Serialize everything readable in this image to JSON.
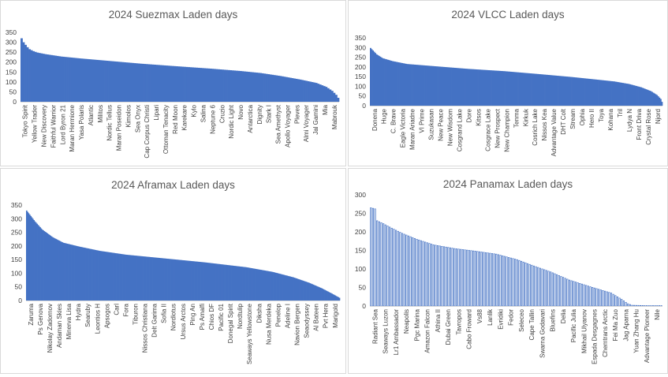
{
  "colors": {
    "bar": "#4472c4",
    "axis": "#d9d9d9",
    "text": "#404040",
    "title": "#595959"
  },
  "chart_data": [
    {
      "type": "bar",
      "title": "2024 Suezmax Laden days",
      "ylim": [
        0,
        350
      ],
      "yticks": [
        0,
        50,
        100,
        150,
        200,
        250,
        300,
        350
      ],
      "bar_count": 160,
      "style": "filled",
      "tick_labels": [
        "Tokyo Spirit",
        "Yellow Trader",
        "New Discovery",
        "Faithful Warrior",
        "Lord Byron 21",
        "Maran Hermione",
        "Yasa Polaris",
        "Atlantic",
        "Militos",
        "Nordic Tellus",
        "Maran Poseidon",
        "Kimolos",
        "Sea Onyx",
        "Cap Corpus Christi",
        "Lipari",
        "Ottoman Tenacity",
        "Red Moon",
        "Karekare",
        "Kylo",
        "Salina",
        "Neptune 6",
        "Cruzio",
        "Nordic Light",
        "Novo",
        "Antarctica",
        "Dignity",
        "Stark I",
        "Sea Amethyst",
        "Apollo Voyager",
        "Pleves",
        "Almi Voyager",
        "Jal Gamini",
        "Mia",
        "Mabrouk"
      ],
      "profile": [
        [
          0,
          320
        ],
        [
          1,
          300
        ],
        [
          2,
          287
        ],
        [
          3,
          275
        ],
        [
          4,
          265
        ],
        [
          6,
          255
        ],
        [
          8,
          248
        ],
        [
          12,
          240
        ],
        [
          20,
          228
        ],
        [
          30,
          218
        ],
        [
          45,
          205
        ],
        [
          60,
          192
        ],
        [
          75,
          181
        ],
        [
          95,
          167
        ],
        [
          110,
          155
        ],
        [
          120,
          145
        ],
        [
          130,
          130
        ],
        [
          140,
          112
        ],
        [
          148,
          95
        ],
        [
          153,
          75
        ],
        [
          156,
          55
        ],
        [
          158,
          35
        ],
        [
          159,
          20
        ]
      ]
    },
    {
      "type": "bar",
      "title": "2024 VLCC Laden days",
      "ylim": [
        0,
        350
      ],
      "yticks": [
        0,
        50,
        100,
        150,
        200,
        250,
        300,
        350
      ],
      "bar_count": 240,
      "style": "filled",
      "tick_labels": [
        "Donena",
        "Huge",
        "C. Brave",
        "Eagle Victoria",
        "Maran Ariadne",
        "VI Prime",
        "Suzukasan",
        "New Peace",
        "New Wisdom",
        "Cosgrand Lake",
        "Dore",
        "Kitsos",
        "Cosgrace Lake",
        "New Prospect",
        "New Champion",
        "Tenma",
        "Kirkuk",
        "Cosrich Lake",
        "Nissos Kea",
        "Advantage Value",
        "DHT Colt",
        "Stream",
        "Ophia",
        "Hero II",
        "Toya",
        "Kohana",
        "Tril",
        "Lydya N",
        "Front Driva",
        "Crystal Rose",
        "Njord"
      ],
      "profile": [
        [
          0,
          298
        ],
        [
          2,
          285
        ],
        [
          5,
          265
        ],
        [
          10,
          245
        ],
        [
          18,
          230
        ],
        [
          30,
          215
        ],
        [
          50,
          205
        ],
        [
          80,
          190
        ],
        [
          110,
          178
        ],
        [
          140,
          162
        ],
        [
          165,
          148
        ],
        [
          185,
          135
        ],
        [
          200,
          125
        ],
        [
          212,
          112
        ],
        [
          222,
          95
        ],
        [
          230,
          75
        ],
        [
          235,
          55
        ],
        [
          238,
          35
        ],
        [
          239,
          20
        ]
      ]
    },
    {
      "type": "bar",
      "title": "2024 Aframax Laden days",
      "ylim": [
        0,
        350
      ],
      "yticks": [
        0,
        50,
        100,
        150,
        200,
        250,
        300,
        350
      ],
      "bar_count": 300,
      "style": "filled",
      "tick_labels": [
        "Zaruma",
        "Ps Genova",
        "Nikolay Zadornov",
        "Andaman Skies",
        "Minerva Lisa",
        "Hydra",
        "Searuby",
        "Leontios H",
        "Apsogos",
        "Carl",
        "Fora",
        "Tiburon",
        "Nissos Christiana",
        "Delt Garima",
        "Sofia II",
        "Nordlotus",
        "Ursus Arctos",
        "Ping An",
        "Ps Amalfi",
        "Chios DF",
        "Pacific 01",
        "Donegal Spirit",
        "Nordtulip",
        "Seaways Yellowstone",
        "Diksha",
        "Nusa Merdeka",
        "Penelop",
        "Adeline I",
        "Navion Bergen",
        "Seaodyssey",
        "Al Bateen",
        "Pvt Hera",
        "Marigold"
      ],
      "profile": [
        [
          0,
          330
        ],
        [
          3,
          315
        ],
        [
          8,
          290
        ],
        [
          15,
          260
        ],
        [
          25,
          232
        ],
        [
          35,
          212
        ],
        [
          50,
          198
        ],
        [
          70,
          182
        ],
        [
          95,
          168
        ],
        [
          130,
          155
        ],
        [
          170,
          140
        ],
        [
          210,
          122
        ],
        [
          235,
          105
        ],
        [
          255,
          85
        ],
        [
          270,
          65
        ],
        [
          282,
          45
        ],
        [
          292,
          25
        ],
        [
          299,
          10
        ]
      ]
    },
    {
      "type": "bar",
      "title": "2024 Panamax Laden days",
      "ylim": [
        0,
        300
      ],
      "yticks": [
        0,
        50,
        100,
        150,
        200,
        250,
        300
      ],
      "bar_count": 140,
      "style": "outlined",
      "tick_labels": [
        "Radiant Sea",
        "Seaways Luzon",
        "Lr1 Ambassador",
        "Neapolis",
        "Pgc Marina",
        "Amazon Falcon",
        "Athina II",
        "Dubai Green",
        "Tavropos",
        "Cabo Froward",
        "Vs88",
        "Lanlik",
        "Evridiki",
        "Fedor",
        "Seleceo",
        "Cape Tallin",
        "Swarna Godavari",
        "Bluefins",
        "Delia",
        "Pacific Julia",
        "Mikhail Ulyanov",
        "Espada Desgagnes",
        "Chemtrans Arctic",
        "Fei Ma Zuo",
        "Jag Aparna",
        "Yuan Zhang Hu",
        "Advantage Pioneer",
        "Nile"
      ],
      "profile": [
        [
          0,
          265
        ],
        [
          2,
          262
        ],
        [
          3,
          230
        ],
        [
          6,
          222
        ],
        [
          10,
          210
        ],
        [
          15,
          196
        ],
        [
          22,
          180
        ],
        [
          30,
          165
        ],
        [
          40,
          155
        ],
        [
          50,
          148
        ],
        [
          60,
          140
        ],
        [
          70,
          125
        ],
        [
          78,
          108
        ],
        [
          86,
          92
        ],
        [
          95,
          70
        ],
        [
          105,
          52
        ],
        [
          115,
          35
        ],
        [
          120,
          18
        ],
        [
          123,
          6
        ],
        [
          125,
          2
        ],
        [
          132,
          1
        ],
        [
          139,
          1
        ]
      ]
    }
  ]
}
